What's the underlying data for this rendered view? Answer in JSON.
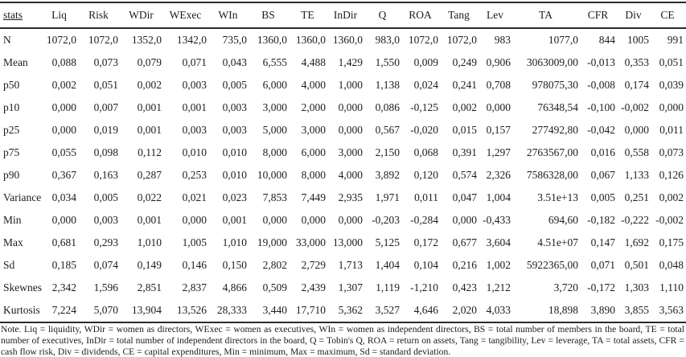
{
  "table": {
    "columns": [
      "stats",
      "Liq",
      "Risk",
      "WDir",
      "WExec",
      "WIn",
      "BS",
      "TE",
      "InDir",
      "Q",
      "ROA",
      "Tang",
      "Lev",
      "TA",
      "CFR",
      "Div",
      "CE"
    ],
    "rows": [
      {
        "label": "N",
        "values": [
          "1072,0",
          "1072,0",
          "1352,0",
          "1342,0",
          "735,0",
          "1360,0",
          "1360,0",
          "1360,0",
          "983,0",
          "1072,0",
          "1072,0",
          "983",
          "1077,0",
          "844",
          "1005",
          "991"
        ]
      },
      {
        "label": "Mean",
        "values": [
          "0,088",
          "0,073",
          "0,079",
          "0,071",
          "0,043",
          "6,555",
          "4,488",
          "1,429",
          "1,550",
          "0,009",
          "0,249",
          "0,906",
          "3063009,00",
          "-0,013",
          "0,353",
          "0,051"
        ]
      },
      {
        "label": "p50",
        "values": [
          "0,002",
          "0,051",
          "0,002",
          "0,003",
          "0,005",
          "6,000",
          "4,000",
          "1,000",
          "1,138",
          "0,024",
          "0,241",
          "0,708",
          "978075,30",
          "-0,008",
          "0,174",
          "0,039"
        ]
      },
      {
        "label": "p10",
        "values": [
          "0,000",
          "0,007",
          "0,001",
          "0,001",
          "0,003",
          "3,000",
          "2,000",
          "0,000",
          "0,086",
          "-0,125",
          "0,002",
          "0,000",
          "76348,54",
          "-0,100",
          "-0,002",
          "0,000"
        ]
      },
      {
        "label": "p25",
        "values": [
          "0,000",
          "0,019",
          "0,001",
          "0,003",
          "0,003",
          "5,000",
          "3,000",
          "0,000",
          "0,567",
          "-0,020",
          "0,015",
          "0,157",
          "277492,80",
          "-0,042",
          "0,000",
          "0,011"
        ]
      },
      {
        "label": "p75",
        "values": [
          "0,055",
          "0,098",
          "0,112",
          "0,010",
          "0,010",
          "8,000",
          "6,000",
          "3,000",
          "2,150",
          "0,068",
          "0,391",
          "1,297",
          "2763567,00",
          "0,016",
          "0,558",
          "0,073"
        ]
      },
      {
        "label": "p90",
        "values": [
          "0,367",
          "0,163",
          "0,287",
          "0,253",
          "0,010",
          "10,000",
          "8,000",
          "4,000",
          "3,892",
          "0,120",
          "0,574",
          "2,326",
          "7586328,00",
          "0,067",
          "1,133",
          "0,126"
        ]
      },
      {
        "label": "Variance",
        "values": [
          "0,034",
          "0,005",
          "0,022",
          "0,021",
          "0,023",
          "7,853",
          "7,449",
          "2,935",
          "1,971",
          "0,011",
          "0,047",
          "1,004",
          "3.51e+13",
          "0,005",
          "0,251",
          "0,002"
        ]
      },
      {
        "label": "Min",
        "values": [
          "0,000",
          "0,003",
          "0,001",
          "0,000",
          "0,001",
          "0,000",
          "0,000",
          "0,000",
          "-0,203",
          "-0,284",
          "0,000",
          "-0,433",
          "694,60",
          "-0,182",
          "-0,222",
          "-0,002"
        ]
      },
      {
        "label": "Max",
        "values": [
          "0,681",
          "0,293",
          "1,010",
          "1,005",
          "1,010",
          "19,000",
          "33,000",
          "13,000",
          "5,125",
          "0,172",
          "0,677",
          "3,604",
          "4.51e+07",
          "0,147",
          "1,692",
          "0,175"
        ]
      },
      {
        "label": "Sd",
        "values": [
          "0,185",
          "0,074",
          "0,149",
          "0,146",
          "0,150",
          "2,802",
          "2,729",
          "1,713",
          "1,404",
          "0,104",
          "0,216",
          "1,002",
          "5922365,00",
          "0,071",
          "0,501",
          "0,048"
        ]
      },
      {
        "label": "Skewness",
        "values": [
          "2,342",
          "1,596",
          "2,851",
          "2,837",
          "4,866",
          "0,509",
          "2,439",
          "1,307",
          "1,119",
          "-1,210",
          "0,423",
          "1,212",
          "3,720",
          "-0,172",
          "1,303",
          "1,110"
        ]
      },
      {
        "label": "Kurtosis",
        "values": [
          "7,224",
          "5,070",
          "13,904",
          "13,526",
          "28,333",
          "3,440",
          "17,710",
          "5,362",
          "3,527",
          "4,646",
          "2,020",
          "4,033",
          "18,898",
          "3,890",
          "3,855",
          "3,563"
        ]
      }
    ]
  },
  "note": "Note. Liq = liquidity, WDir = women as directors, WExec = women as executives, WIn = women as independent directors, BS = total number of members in the board, TE = total number of executives, InDir = total number of independent directors in the board, Q = Tobin's Q, ROA = return on assets, Tang = tangibility, Lev = leverage, TA = total assets, CFR = cash flow risk, Div = dividends, CE = capital expenditures, Min = minimum, Max = maximum, Sd = standard deviation."
}
